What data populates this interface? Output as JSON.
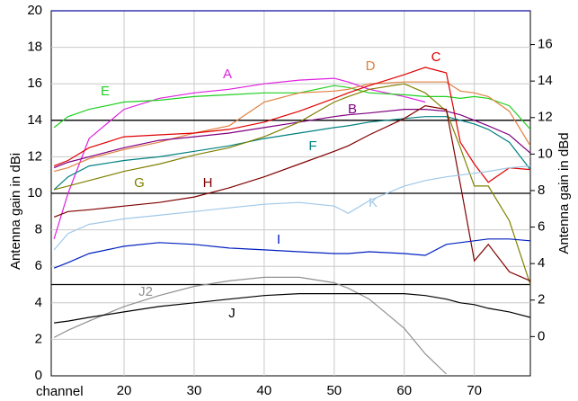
{
  "chart_data": {
    "type": "line",
    "x_label": "channel",
    "y_label": "Antenna gain   in dBi",
    "y2_label": "Antenna gain   in dBd",
    "x": [
      10,
      12,
      15,
      20,
      25,
      30,
      35,
      40,
      45,
      50,
      52,
      55,
      60,
      63,
      66,
      68,
      70,
      72,
      75,
      78
    ],
    "xlim": [
      9.6,
      78
    ],
    "xticks": [
      20,
      30,
      40,
      50,
      60,
      70
    ],
    "ylim": [
      0,
      20
    ],
    "yticks": [
      0,
      2,
      4,
      6,
      8,
      10,
      12,
      14,
      16,
      18,
      20
    ],
    "y2lim": [
      -2.15,
      17.85
    ],
    "y2ticks": [
      0,
      2,
      4,
      6,
      8,
      10,
      12,
      14,
      16
    ],
    "grid": true,
    "series": [
      {
        "name": "A",
        "color": "#e020e0",
        "values": [
          7.5,
          10,
          13,
          14.6,
          15.2,
          15.5,
          15.7,
          16,
          16.2,
          16.3,
          16.1,
          15.7,
          15.3,
          15,
          null,
          null,
          null,
          null,
          null,
          null
        ]
      },
      {
        "name": "E",
        "color": "#20d020",
        "values": [
          13.6,
          14.2,
          14.6,
          15,
          15.1,
          15.3,
          15.4,
          15.5,
          15.5,
          15.9,
          15.8,
          15.5,
          15.4,
          15.3,
          15.3,
          15.2,
          15.3,
          15.2,
          14.8,
          13.5
        ]
      },
      {
        "name": "D",
        "color": "#e08040",
        "values": [
          11.2,
          11.4,
          11.9,
          12.4,
          12.8,
          13.3,
          13.7,
          15,
          15.5,
          15.6,
          15.7,
          16,
          16.1,
          16.1,
          16.1,
          15.6,
          15.5,
          15.3,
          14.5,
          12.6
        ]
      },
      {
        "name": "C",
        "color": "#e00000",
        "values": [
          11.5,
          11.8,
          12.5,
          13.1,
          13.2,
          13.3,
          13.5,
          13.9,
          14.5,
          15.2,
          15.5,
          15.9,
          16.5,
          16.9,
          16.6,
          12.8,
          11.6,
          10.6,
          11.4,
          11.3
        ]
      },
      {
        "name": "B",
        "color": "#800080",
        "values": [
          11.4,
          11.7,
          12,
          12.5,
          12.9,
          13.1,
          13.3,
          13.6,
          13.9,
          14.2,
          14.3,
          14.4,
          14.6,
          14.6,
          14.5,
          14.3,
          14,
          13.7,
          13.2,
          12.2
        ]
      },
      {
        "name": "F",
        "color": "#008080",
        "values": [
          10.2,
          10.9,
          11.5,
          11.8,
          12,
          12.3,
          12.6,
          13,
          13.3,
          13.6,
          13.7,
          13.9,
          14.1,
          14.2,
          14.2,
          14,
          13.8,
          13.5,
          12.8,
          11.3
        ]
      },
      {
        "name": "G",
        "color": "#808000",
        "values": [
          10.2,
          10.4,
          10.7,
          11.2,
          11.6,
          12.1,
          12.5,
          13.1,
          13.9,
          15,
          15.3,
          15.7,
          16,
          15.5,
          14.5,
          12.5,
          10.4,
          10.4,
          8.5,
          5
        ]
      },
      {
        "name": "H",
        "color": "#800000",
        "values": [
          8.7,
          9,
          9.1,
          9.3,
          9.5,
          9.8,
          10.3,
          10.9,
          11.6,
          12.3,
          12.6,
          13.2,
          14.1,
          14.8,
          14.6,
          10.5,
          6.3,
          7.2,
          5.7,
          5.2
        ]
      },
      {
        "name": "K",
        "color": "#a0c8e8",
        "values": [
          6.9,
          7.8,
          8.3,
          8.6,
          8.8,
          9,
          9.2,
          9.4,
          9.5,
          9.3,
          8.9,
          9.6,
          10.4,
          10.7,
          10.9,
          11,
          11.1,
          11.2,
          11.4,
          11.5
        ]
      },
      {
        "name": "I",
        "color": "#0020c0",
        "values": [
          5.9,
          6.2,
          6.7,
          7.1,
          7.3,
          7.2,
          7,
          6.9,
          6.8,
          6.7,
          6.7,
          6.8,
          6.7,
          6.6,
          7.2,
          7.3,
          7.4,
          7.5,
          7.5,
          7.4
        ]
      },
      {
        "name": "J2",
        "color": "#909090",
        "values": [
          2.1,
          2.5,
          3,
          3.8,
          4.4,
          4.9,
          5.2,
          5.4,
          5.4,
          5.1,
          4.8,
          4.2,
          2.6,
          1.2,
          0.1,
          null,
          null,
          null,
          null,
          null
        ]
      },
      {
        "name": "J",
        "color": "#000000",
        "values": [
          2.9,
          3,
          3.2,
          3.5,
          3.8,
          4,
          4.2,
          4.4,
          4.5,
          4.5,
          4.5,
          4.5,
          4.5,
          4.4,
          4.2,
          4,
          3.9,
          3.7,
          3.5,
          3.2
        ]
      }
    ]
  }
}
